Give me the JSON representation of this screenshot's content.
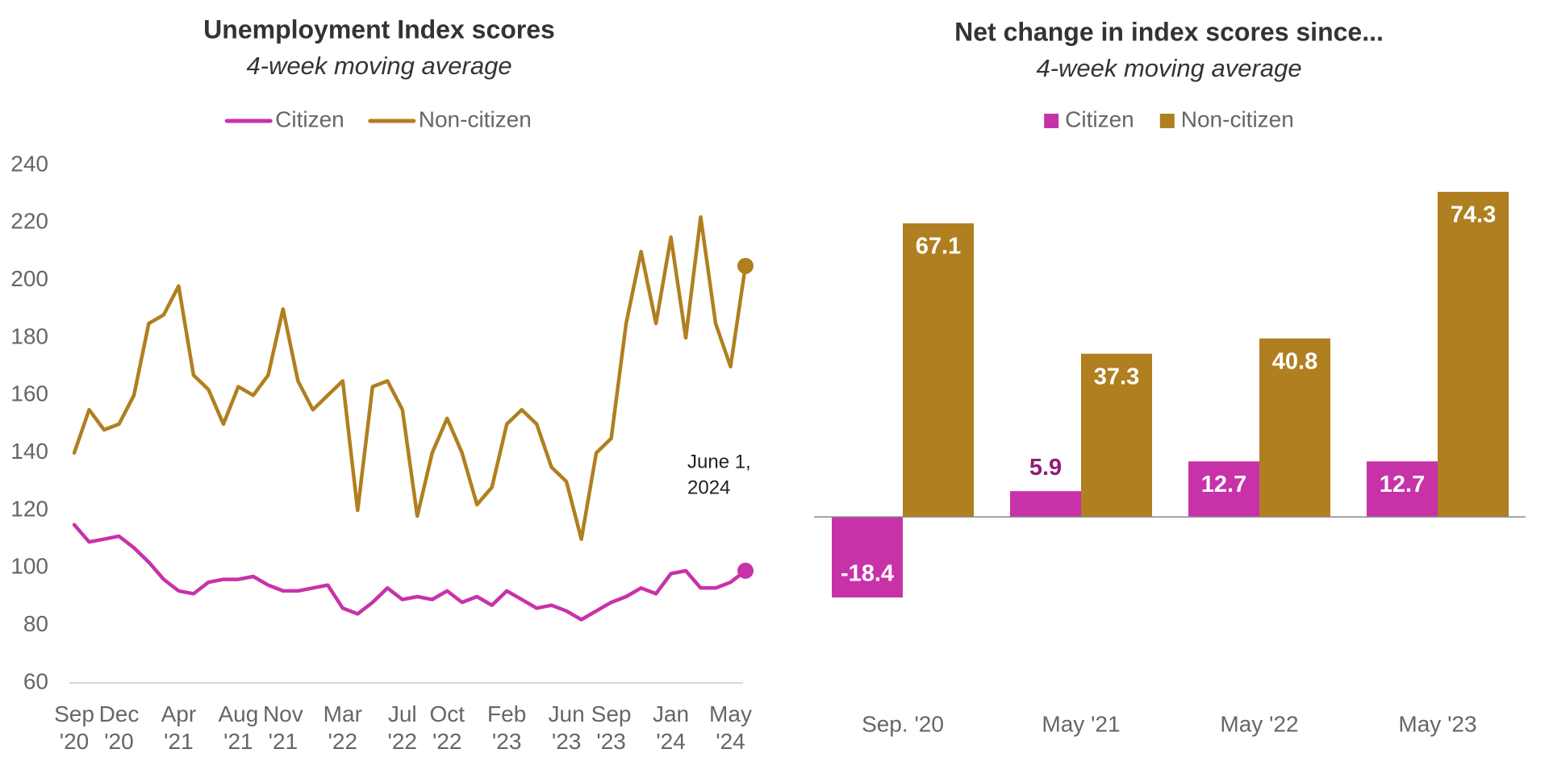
{
  "chart_data": [
    {
      "type": "line",
      "title": "Unemployment Index scores",
      "subtitle": "4-week moving average",
      "x": [
        "2020-09",
        "2020-10",
        "2020-11",
        "2020-12",
        "2021-01",
        "2021-02",
        "2021-03",
        "2021-04",
        "2021-05",
        "2021-06",
        "2021-07",
        "2021-08",
        "2021-09",
        "2021-10",
        "2021-11",
        "2021-12",
        "2022-01",
        "2022-02",
        "2022-03",
        "2022-04",
        "2022-05",
        "2022-06",
        "2022-07",
        "2022-08",
        "2022-09",
        "2022-10",
        "2022-11",
        "2022-12",
        "2023-01",
        "2023-02",
        "2023-03",
        "2023-04",
        "2023-05",
        "2023-06",
        "2023-07",
        "2023-08",
        "2023-09",
        "2023-10",
        "2023-11",
        "2023-12",
        "2024-01",
        "2024-02",
        "2024-03",
        "2024-04",
        "2024-05",
        "2024-06"
      ],
      "xlim": [
        "2020-09",
        "2024-06"
      ],
      "xticks": [
        {
          "value": "2020-09",
          "label": "Sep '20"
        },
        {
          "value": "2020-12",
          "label": "Dec '20"
        },
        {
          "value": "2021-04",
          "label": "Apr '21"
        },
        {
          "value": "2021-08",
          "label": "Aug '21"
        },
        {
          "value": "2021-11",
          "label": "Nov '21"
        },
        {
          "value": "2022-03",
          "label": "Mar '22"
        },
        {
          "value": "2022-07",
          "label": "Jul '22"
        },
        {
          "value": "2022-10",
          "label": "Oct '22"
        },
        {
          "value": "2023-02",
          "label": "Feb '23"
        },
        {
          "value": "2023-06",
          "label": "Jun '23"
        },
        {
          "value": "2023-09",
          "label": "Sep '23"
        },
        {
          "value": "2024-01",
          "label": "Jan '24"
        },
        {
          "value": "2024-05",
          "label": "May '24"
        }
      ],
      "ylim": [
        60,
        240
      ],
      "yticks": [
        60,
        80,
        100,
        120,
        140,
        160,
        180,
        200,
        220,
        240
      ],
      "annotation": [
        "June 1,",
        "2024"
      ],
      "series": [
        {
          "name": "Citizen",
          "color": "#c832a8",
          "values": [
            115,
            109,
            110,
            111,
            107,
            102,
            96,
            92,
            91,
            95,
            96,
            96,
            97,
            94,
            92,
            92,
            93,
            94,
            86,
            84,
            88,
            93,
            89,
            90,
            89,
            92,
            88,
            90,
            87,
            92,
            89,
            86,
            87,
            85,
            82,
            85,
            88,
            90,
            93,
            91,
            98,
            99,
            93,
            93,
            95,
            99
          ]
        },
        {
          "name": "Non-citizen",
          "color": "#b07f1f",
          "values": [
            140,
            155,
            148,
            150,
            160,
            185,
            188,
            198,
            167,
            162,
            150,
            163,
            160,
            167,
            190,
            165,
            155,
            160,
            165,
            120,
            163,
            165,
            155,
            118,
            140,
            152,
            140,
            122,
            128,
            150,
            155,
            150,
            135,
            130,
            110,
            140,
            145,
            185,
            210,
            185,
            215,
            180,
            222,
            185,
            170,
            205
          ]
        }
      ]
    },
    {
      "type": "bar",
      "title": "Net change in index scores since...",
      "subtitle": "4-week moving average",
      "categories": [
        "Sep. '20",
        "May '21",
        "May '22",
        "May '23"
      ],
      "ylim": [
        -30,
        80
      ],
      "series": [
        {
          "name": "Citizen",
          "color": "#c832a8",
          "values": [
            -18.4,
            5.9,
            12.7,
            12.7
          ]
        },
        {
          "name": "Non-citizen",
          "color": "#b07f1f",
          "values": [
            67.1,
            37.3,
            40.8,
            74.3
          ]
        }
      ]
    }
  ]
}
